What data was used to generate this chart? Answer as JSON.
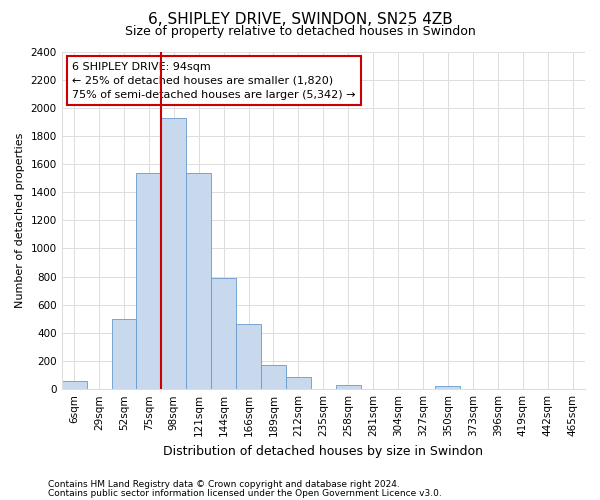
{
  "title_line1": "6, SHIPLEY DRIVE, SWINDON, SN25 4ZB",
  "title_line2": "Size of property relative to detached houses in Swindon",
  "xlabel": "Distribution of detached houses by size in Swindon",
  "ylabel": "Number of detached properties",
  "categories": [
    "6sqm",
    "29sqm",
    "52sqm",
    "75sqm",
    "98sqm",
    "121sqm",
    "144sqm",
    "166sqm",
    "189sqm",
    "212sqm",
    "235sqm",
    "258sqm",
    "281sqm",
    "304sqm",
    "327sqm",
    "350sqm",
    "373sqm",
    "396sqm",
    "419sqm",
    "442sqm",
    "465sqm"
  ],
  "values": [
    55,
    0,
    500,
    1540,
    1930,
    1540,
    790,
    460,
    175,
    90,
    0,
    30,
    0,
    0,
    0,
    20,
    0,
    0,
    0,
    0,
    0
  ],
  "bar_color": "#c8d8ed",
  "bar_edge_color": "#6699cc",
  "vline_x": 3.5,
  "vline_color": "#cc0000",
  "annotation_text": "6 SHIPLEY DRIVE: 94sqm\n← 25% of detached houses are smaller (1,820)\n75% of semi-detached houses are larger (5,342) →",
  "annotation_box_facecolor": "#ffffff",
  "annotation_box_edgecolor": "#cc0000",
  "ylim": [
    0,
    2400
  ],
  "yticks": [
    0,
    200,
    400,
    600,
    800,
    1000,
    1200,
    1400,
    1600,
    1800,
    2000,
    2200,
    2400
  ],
  "bg_color": "#ffffff",
  "grid_color": "#dddddd",
  "footnote1": "Contains HM Land Registry data © Crown copyright and database right 2024.",
  "footnote2": "Contains public sector information licensed under the Open Government Licence v3.0.",
  "title1_fontsize": 11,
  "title2_fontsize": 9,
  "ylabel_fontsize": 8,
  "xlabel_fontsize": 9,
  "tick_fontsize": 7.5,
  "footnote_fontsize": 6.5
}
